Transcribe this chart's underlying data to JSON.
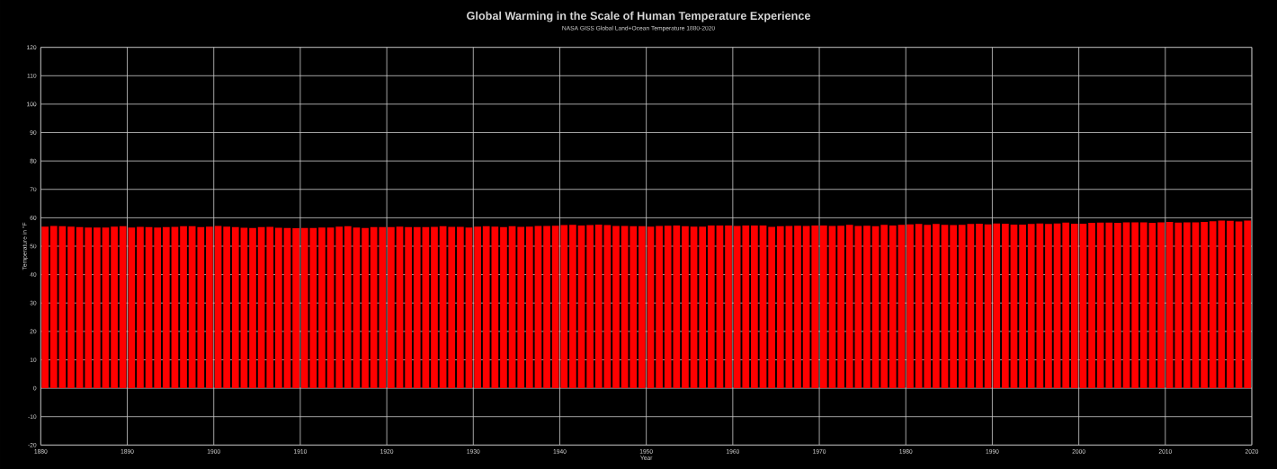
{
  "chart_data": {
    "type": "bar",
    "title": "Global Warming in the Scale of Human Temperature Experience",
    "subtitle": "NASA GISS Global Land+Ocean Temperature 1880-2020",
    "xlabel": "Year",
    "ylabel": "Temperature in °F",
    "x": [
      1880,
      1881,
      1882,
      1883,
      1884,
      1885,
      1886,
      1887,
      1888,
      1889,
      1890,
      1891,
      1892,
      1893,
      1894,
      1895,
      1896,
      1897,
      1898,
      1899,
      1900,
      1901,
      1902,
      1903,
      1904,
      1905,
      1906,
      1907,
      1908,
      1909,
      1910,
      1911,
      1912,
      1913,
      1914,
      1915,
      1916,
      1917,
      1918,
      1919,
      1920,
      1921,
      1922,
      1923,
      1924,
      1925,
      1926,
      1927,
      1928,
      1929,
      1930,
      1931,
      1932,
      1933,
      1934,
      1935,
      1936,
      1937,
      1938,
      1939,
      1940,
      1941,
      1942,
      1943,
      1944,
      1945,
      1946,
      1947,
      1948,
      1949,
      1950,
      1951,
      1952,
      1953,
      1954,
      1955,
      1956,
      1957,
      1958,
      1959,
      1960,
      1961,
      1962,
      1963,
      1964,
      1965,
      1966,
      1967,
      1968,
      1969,
      1970,
      1971,
      1972,
      1973,
      1974,
      1975,
      1976,
      1977,
      1978,
      1979,
      1980,
      1981,
      1982,
      1983,
      1984,
      1985,
      1986,
      1987,
      1988,
      1989,
      1990,
      1991,
      1992,
      1993,
      1994,
      1995,
      1996,
      1997,
      1998,
      1999,
      2000,
      2001,
      2002,
      2003,
      2004,
      2005,
      2006,
      2007,
      2008,
      2009,
      2010,
      2011,
      2012,
      2013,
      2014,
      2015,
      2016,
      2017,
      2018,
      2019
    ],
    "values": [
      56.9,
      57.1,
      57.0,
      56.9,
      56.7,
      56.6,
      56.6,
      56.6,
      56.9,
      57.0,
      56.6,
      56.8,
      56.7,
      56.6,
      56.7,
      56.8,
      57.0,
      57.0,
      56.7,
      56.9,
      57.1,
      56.9,
      56.7,
      56.5,
      56.4,
      56.7,
      56.8,
      56.5,
      56.4,
      56.3,
      56.4,
      56.4,
      56.6,
      56.6,
      56.9,
      57.0,
      56.6,
      56.4,
      56.7,
      56.7,
      56.7,
      56.9,
      56.7,
      56.7,
      56.7,
      56.8,
      57.0,
      56.8,
      56.8,
      56.6,
      56.9,
      57.0,
      56.9,
      56.7,
      57.0,
      56.8,
      56.9,
      57.1,
      57.1,
      57.2,
      57.4,
      57.5,
      57.3,
      57.4,
      57.6,
      57.4,
      57.1,
      57.1,
      57.0,
      57.0,
      56.9,
      57.1,
      57.2,
      57.3,
      57.0,
      56.9,
      56.9,
      57.3,
      57.3,
      57.3,
      57.1,
      57.3,
      57.3,
      57.3,
      56.8,
      57.0,
      57.1,
      57.2,
      57.1,
      57.3,
      57.3,
      57.1,
      57.2,
      57.5,
      57.1,
      57.2,
      57.0,
      57.5,
      57.3,
      57.5,
      57.7,
      57.8,
      57.5,
      57.8,
      57.5,
      57.4,
      57.5,
      57.8,
      57.9,
      57.7,
      58.0,
      57.9,
      57.6,
      57.6,
      57.8,
      58.0,
      57.8,
      58.0,
      58.3,
      57.9,
      57.9,
      58.2,
      58.3,
      58.3,
      58.2,
      58.4,
      58.4,
      58.4,
      58.2,
      58.4,
      58.5,
      58.3,
      58.4,
      58.4,
      58.5,
      58.8,
      59.0,
      58.9,
      58.7,
      59.0
    ],
    "color": "#ff0000",
    "xlim": [
      1880,
      2020
    ],
    "ylim": [
      -20,
      120
    ],
    "xticks": [
      1880,
      1890,
      1900,
      1910,
      1920,
      1930,
      1940,
      1950,
      1960,
      1970,
      1980,
      1990,
      2000,
      2010,
      2020
    ],
    "yticks": [
      -20,
      -10,
      0,
      10,
      20,
      30,
      40,
      50,
      60,
      70,
      80,
      90,
      100,
      110,
      120
    ],
    "grid": true
  }
}
